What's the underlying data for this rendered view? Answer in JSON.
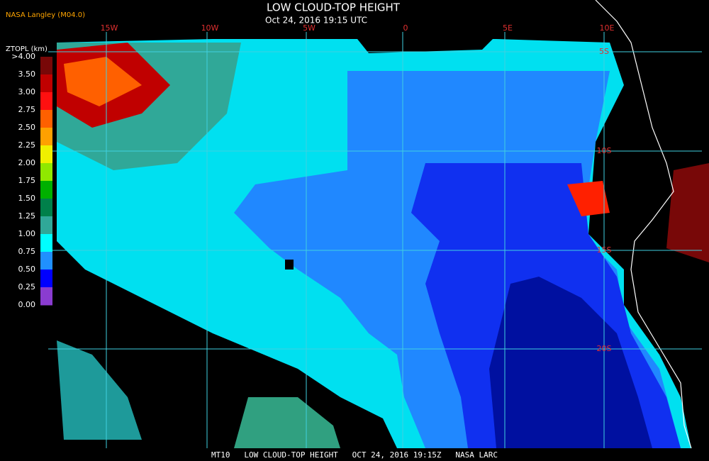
{
  "header": {
    "title": "LOW CLOUD-TOP HEIGHT",
    "subtitle": "Oct 24, 2016 19:15 UTC",
    "source": "NASA Langley (M04.0)"
  },
  "colorbar": {
    "label": "ZTOPL (km)",
    "ticks": [
      ">4.00",
      "3.50",
      "3.00",
      "2.75",
      "2.50",
      "2.25",
      "2.00",
      "1.75",
      "1.50",
      "1.25",
      "1.00",
      "0.75",
      "0.50",
      "0.25",
      "0.00"
    ],
    "colors": [
      "#780808",
      "#c00000",
      "#ff1010",
      "#ff6000",
      "#ffa000",
      "#f0f000",
      "#90e800",
      "#00b000",
      "#00804a",
      "#30a898",
      "#00ffff",
      "#2090ff",
      "#0000ff",
      "#8a3cd0"
    ]
  },
  "map": {
    "longitudes": [
      "15W",
      "10W",
      "5W",
      "0",
      "5E",
      "10E"
    ],
    "latitudes": [
      "5S",
      "10S",
      "15S",
      "20S"
    ]
  },
  "footer": "MT10   LOW CLOUD-TOP HEIGHT   OCT 24, 2016 19:15Z   NASA LARC"
}
